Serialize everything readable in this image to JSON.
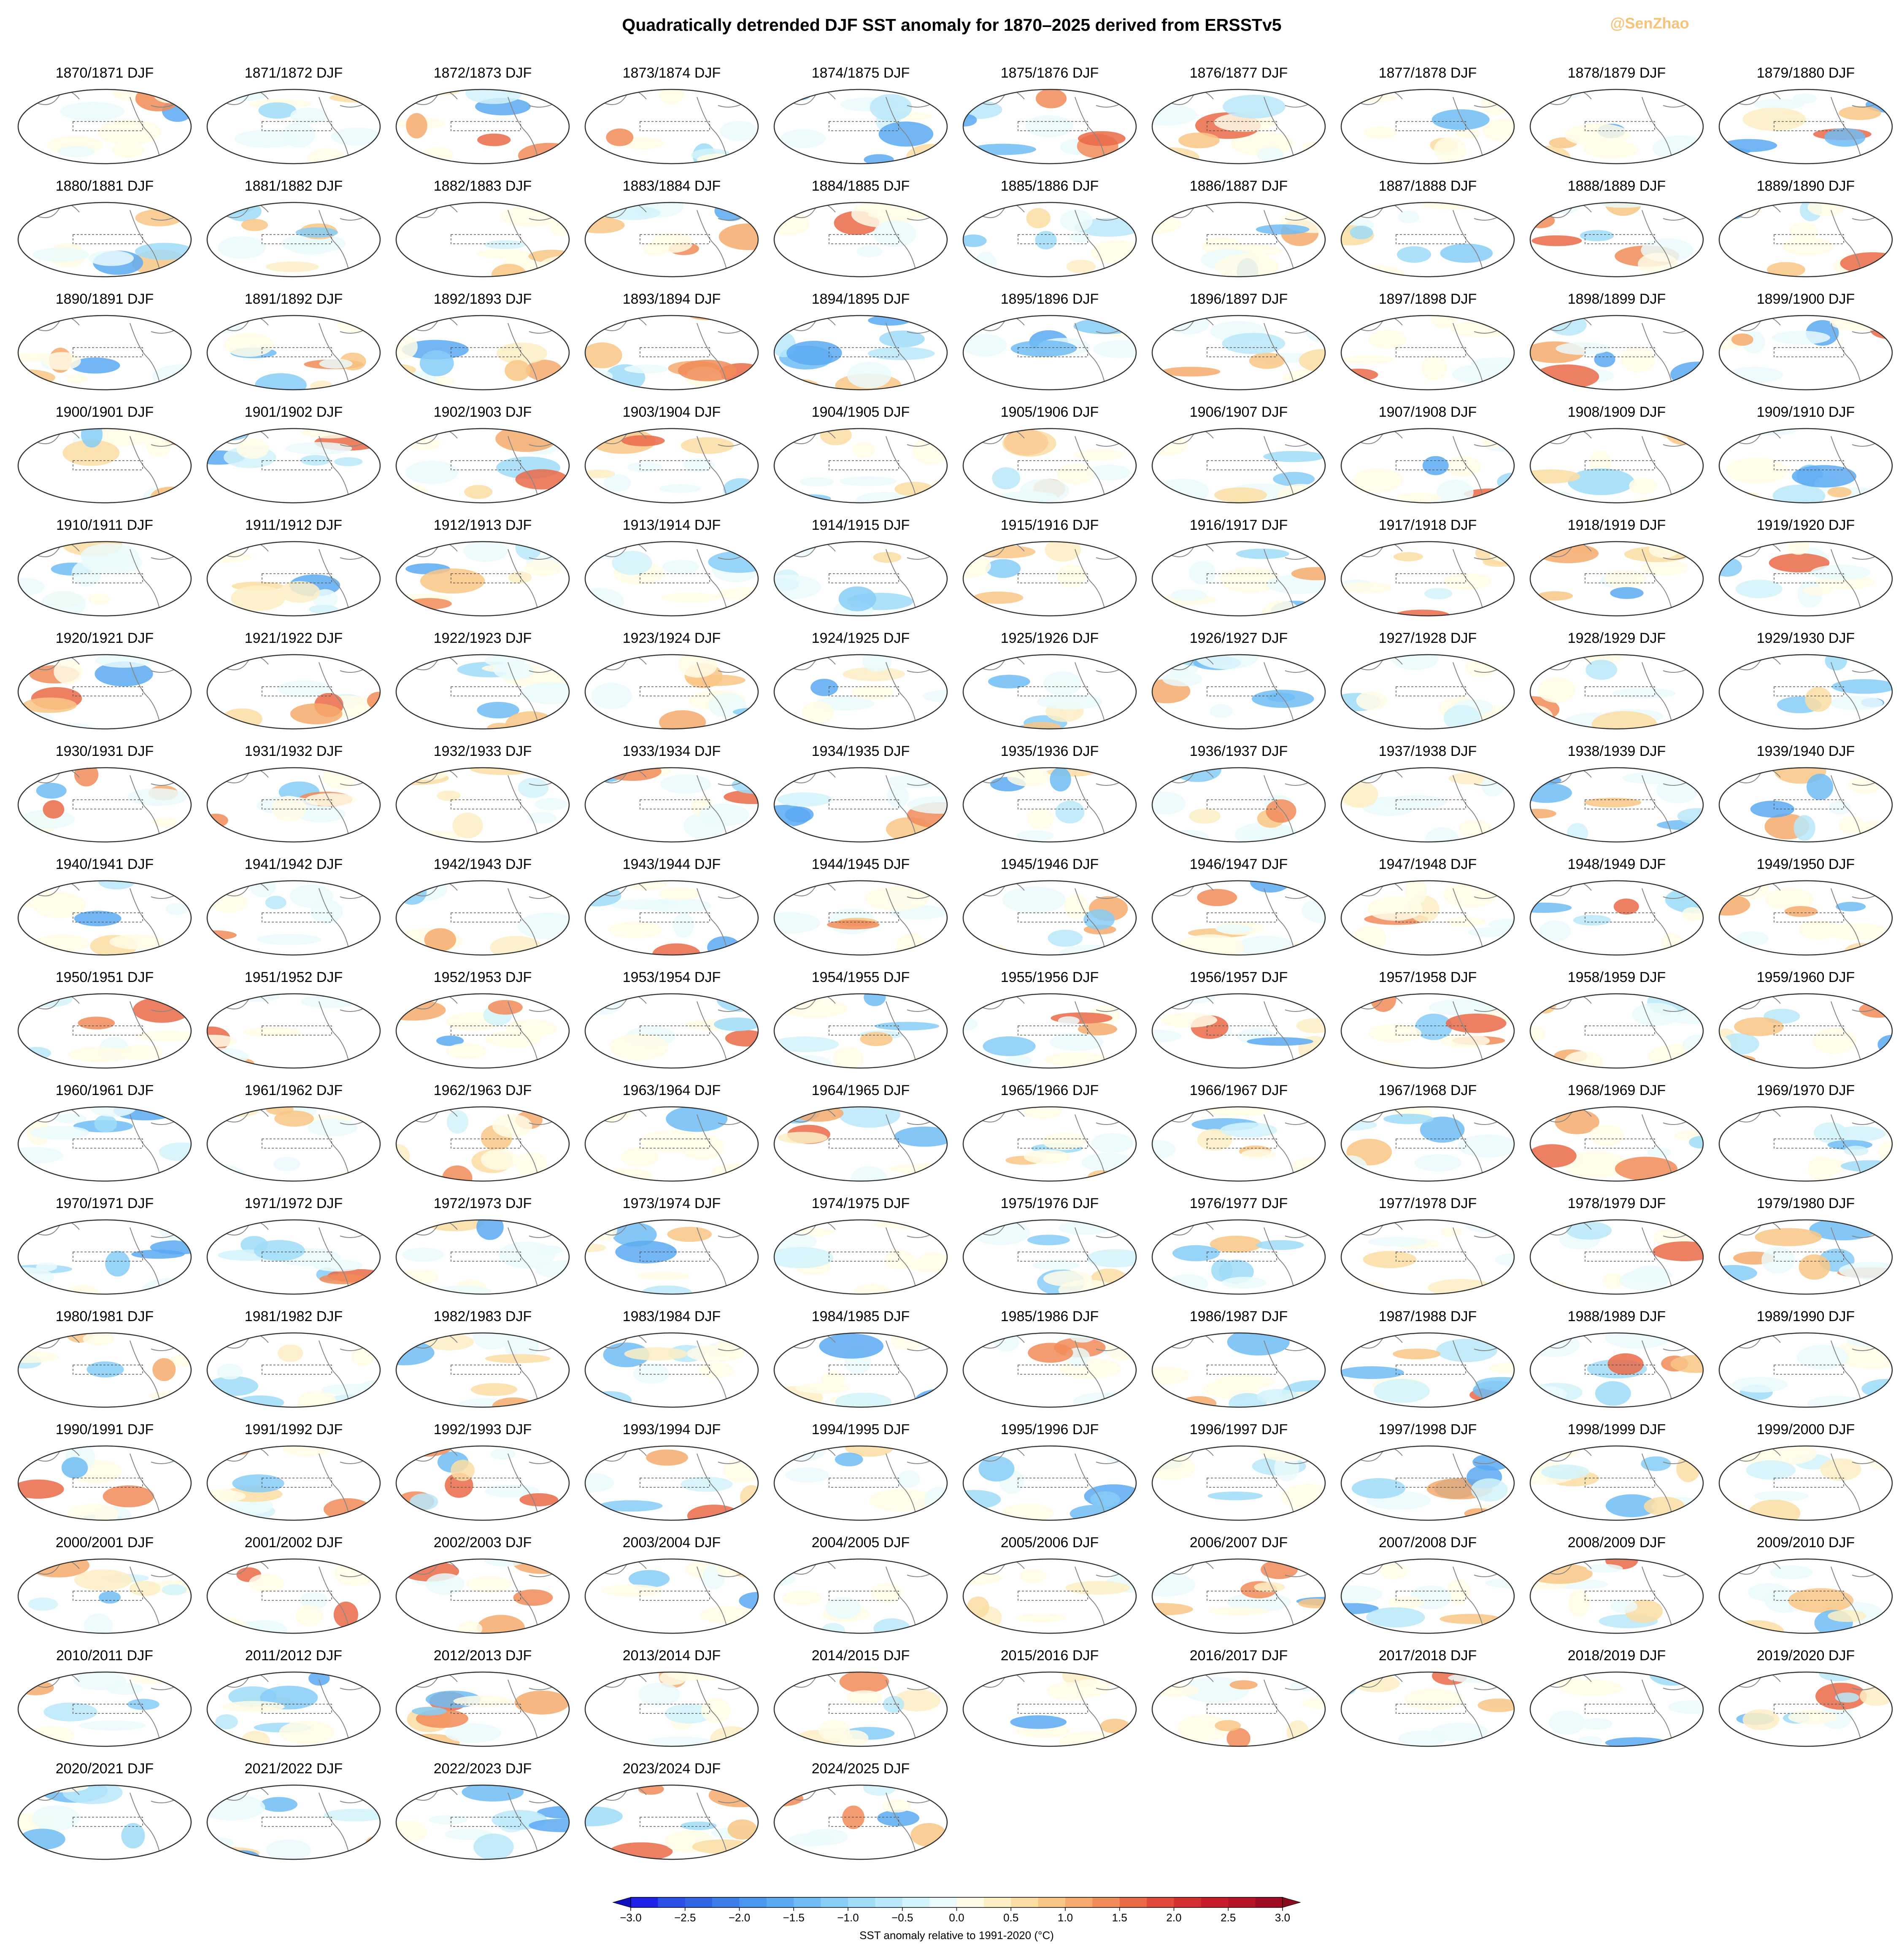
{
  "chart_data": {
    "type": "map-grid",
    "title": "Quadratically detrended DJF SST anomaly for 1870–2025 derived from ERSSTv5",
    "watermark": "@SenZhao",
    "panels": [
      "1870/1871 DJF",
      "1871/1872 DJF",
      "1872/1873 DJF",
      "1873/1874 DJF",
      "1874/1875 DJF",
      "1875/1876 DJF",
      "1876/1877 DJF",
      "1877/1878 DJF",
      "1878/1879 DJF",
      "1879/1880 DJF",
      "1880/1881 DJF",
      "1881/1882 DJF",
      "1882/1883 DJF",
      "1883/1884 DJF",
      "1884/1885 DJF",
      "1885/1886 DJF",
      "1886/1887 DJF",
      "1887/1888 DJF",
      "1888/1889 DJF",
      "1889/1890 DJF",
      "1890/1891 DJF",
      "1891/1892 DJF",
      "1892/1893 DJF",
      "1893/1894 DJF",
      "1894/1895 DJF",
      "1895/1896 DJF",
      "1896/1897 DJF",
      "1897/1898 DJF",
      "1898/1899 DJF",
      "1899/1900 DJF",
      "1900/1901 DJF",
      "1901/1902 DJF",
      "1902/1903 DJF",
      "1903/1904 DJF",
      "1904/1905 DJF",
      "1905/1906 DJF",
      "1906/1907 DJF",
      "1907/1908 DJF",
      "1908/1909 DJF",
      "1909/1910 DJF",
      "1910/1911 DJF",
      "1911/1912 DJF",
      "1912/1913 DJF",
      "1913/1914 DJF",
      "1914/1915 DJF",
      "1915/1916 DJF",
      "1916/1917 DJF",
      "1917/1918 DJF",
      "1918/1919 DJF",
      "1919/1920 DJF",
      "1920/1921 DJF",
      "1921/1922 DJF",
      "1922/1923 DJF",
      "1923/1924 DJF",
      "1924/1925 DJF",
      "1925/1926 DJF",
      "1926/1927 DJF",
      "1927/1928 DJF",
      "1928/1929 DJF",
      "1929/1930 DJF",
      "1930/1931 DJF",
      "1931/1932 DJF",
      "1932/1933 DJF",
      "1933/1934 DJF",
      "1934/1935 DJF",
      "1935/1936 DJF",
      "1936/1937 DJF",
      "1937/1938 DJF",
      "1938/1939 DJF",
      "1939/1940 DJF",
      "1940/1941 DJF",
      "1941/1942 DJF",
      "1942/1943 DJF",
      "1943/1944 DJF",
      "1944/1945 DJF",
      "1945/1946 DJF",
      "1946/1947 DJF",
      "1947/1948 DJF",
      "1948/1949 DJF",
      "1949/1950 DJF",
      "1950/1951 DJF",
      "1951/1952 DJF",
      "1952/1953 DJF",
      "1953/1954 DJF",
      "1954/1955 DJF",
      "1955/1956 DJF",
      "1956/1957 DJF",
      "1957/1958 DJF",
      "1958/1959 DJF",
      "1959/1960 DJF",
      "1960/1961 DJF",
      "1961/1962 DJF",
      "1962/1963 DJF",
      "1963/1964 DJF",
      "1964/1965 DJF",
      "1965/1966 DJF",
      "1966/1967 DJF",
      "1967/1968 DJF",
      "1968/1969 DJF",
      "1969/1970 DJF",
      "1970/1971 DJF",
      "1971/1972 DJF",
      "1972/1973 DJF",
      "1973/1974 DJF",
      "1974/1975 DJF",
      "1975/1976 DJF",
      "1976/1977 DJF",
      "1977/1978 DJF",
      "1978/1979 DJF",
      "1979/1980 DJF",
      "1980/1981 DJF",
      "1981/1982 DJF",
      "1982/1983 DJF",
      "1983/1984 DJF",
      "1984/1985 DJF",
      "1985/1986 DJF",
      "1986/1987 DJF",
      "1987/1988 DJF",
      "1988/1989 DJF",
      "1989/1990 DJF",
      "1990/1991 DJF",
      "1991/1992 DJF",
      "1992/1993 DJF",
      "1993/1994 DJF",
      "1994/1995 DJF",
      "1995/1996 DJF",
      "1996/1997 DJF",
      "1997/1998 DJF",
      "1998/1999 DJF",
      "1999/2000 DJF",
      "2000/2001 DJF",
      "2001/2002 DJF",
      "2002/2003 DJF",
      "2003/2004 DJF",
      "2004/2005 DJF",
      "2005/2006 DJF",
      "2006/2007 DJF",
      "2007/2008 DJF",
      "2008/2009 DJF",
      "2009/2010 DJF",
      "2010/2011 DJF",
      "2011/2012 DJF",
      "2012/2013 DJF",
      "2013/2014 DJF",
      "2014/2015 DJF",
      "2015/2016 DJF",
      "2016/2017 DJF",
      "2017/2018 DJF",
      "2018/2019 DJF",
      "2019/2020 DJF",
      "2020/2021 DJF",
      "2021/2022 DJF",
      "2022/2023 DJF",
      "2023/2024 DJF",
      "2024/2025 DJF"
    ],
    "colorbar": {
      "label": "SST anomaly relative to 1991-2020 (°C)",
      "lim": [
        -3,
        3
      ],
      "ticks": [
        {
          "value": -3,
          "label": "−3.0"
        },
        {
          "value": -2.5,
          "label": "−2.5"
        },
        {
          "value": -2,
          "label": "−2.0"
        },
        {
          "value": -1.5,
          "label": "−1.5"
        },
        {
          "value": -1,
          "label": "−1.0"
        },
        {
          "value": -0.5,
          "label": "−0.5"
        },
        {
          "value": 0,
          "label": "0.0"
        },
        0.5,
        {
          "value": 1,
          "label": "1.0"
        },
        1.5,
        {
          "value": 2,
          "label": "2.0"
        },
        2.5,
        {
          "value": 3,
          "label": "3.0"
        }
      ],
      "colors": [
        "#1e22e6",
        "#2b4de8",
        "#3366e6",
        "#3d7fea",
        "#4a95ee",
        "#5aa9f2",
        "#6fbcf5",
        "#86cdf7",
        "#9fdcf8",
        "#b8e8f9",
        "#d2f3fa",
        "#eafafc",
        "#fffbe6",
        "#fdefc4",
        "#fbdda3",
        "#f9c585",
        "#f6aa6c",
        "#f18b58",
        "#ea6a48",
        "#e04a3b",
        "#d42e31",
        "#c71d2b",
        "#b51327",
        "#a00b22"
      ],
      "under_color": "#1010c0",
      "over_color": "#8a0a1e"
    }
  }
}
